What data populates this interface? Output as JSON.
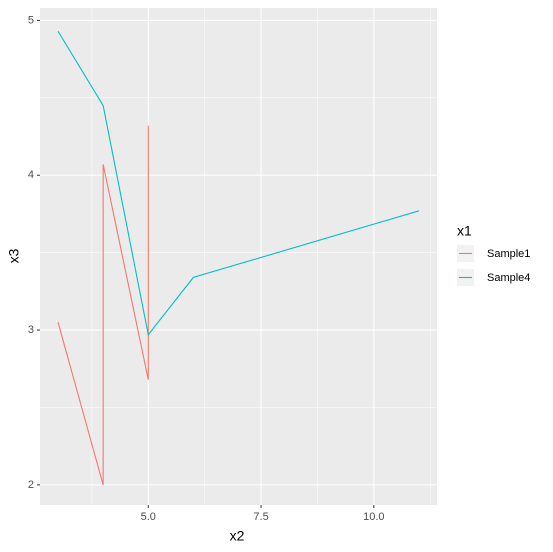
{
  "chart_data": {
    "type": "line",
    "x_label": "x2",
    "y_label": "x3",
    "legend_title": "x1",
    "legend_position": "right",
    "series": [
      {
        "name": "Sample1",
        "color": "#F8766D",
        "x": [
          3,
          4,
          4,
          5,
          5
        ],
        "values": [
          3.05,
          2.0,
          4.07,
          2.68,
          4.32
        ]
      },
      {
        "name": "Sample4",
        "color": "#00BFC4",
        "x": [
          3,
          4,
          5,
          6,
          11
        ],
        "values": [
          4.93,
          4.45,
          2.97,
          3.34,
          3.77
        ]
      }
    ],
    "xlim": [
      2.6,
      11.4
    ],
    "ylim": [
      1.87,
      5.08
    ],
    "xticks": [
      {
        "value": 5,
        "label": "5.0"
      },
      7.5,
      {
        "value": 10,
        "label": "10.0"
      }
    ],
    "yticks": [
      2,
      3,
      4,
      5
    ],
    "grid": true
  }
}
